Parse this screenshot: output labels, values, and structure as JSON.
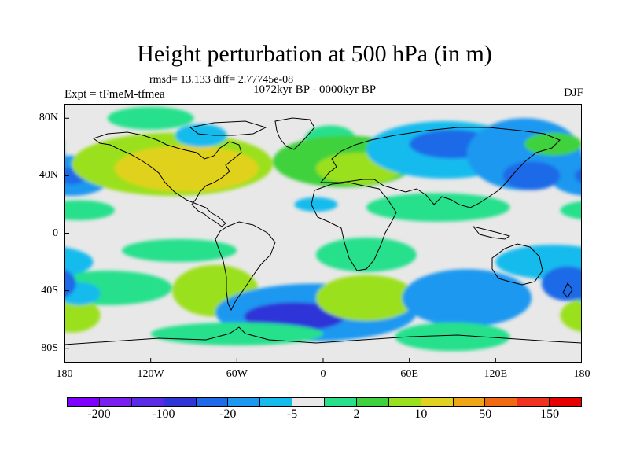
{
  "title": "Height perturbation at 500 hPa (in m)",
  "stats": "rmsd= 13.133 diff= 2.77745e-08",
  "subtitle": "1072kyr BP - 0000kyr BP",
  "left_label": "Expt = tFmeM-tfmea",
  "right_label": "DJF",
  "map": {
    "projection": "cylindrical-equidistant",
    "lon_range": [
      -180,
      180
    ],
    "lat_range": [
      -90,
      90
    ],
    "lat_ticks": [
      {
        "value": 80,
        "label": "80N"
      },
      {
        "value": 40,
        "label": "40N"
      },
      {
        "value": 0,
        "label": "0"
      },
      {
        "value": -40,
        "label": "40S"
      },
      {
        "value": -80,
        "label": "80S"
      }
    ],
    "lon_ticks": [
      {
        "value": -180,
        "label": "180"
      },
      {
        "value": -120,
        "label": "120W"
      },
      {
        "value": -60,
        "label": "60W"
      },
      {
        "value": 0,
        "label": "0"
      },
      {
        "value": 60,
        "label": "60E"
      },
      {
        "value": 120,
        "label": "120E"
      },
      {
        "value": 180,
        "label": "180"
      }
    ],
    "features": [
      {
        "lon": -120,
        "lat": 80,
        "rx": 30,
        "ry": 8,
        "level": 8
      },
      {
        "lon": -175,
        "lat": 40,
        "rx": 28,
        "ry": 14,
        "level": 3
      },
      {
        "lon": -175,
        "lat": 40,
        "rx": 10,
        "ry": 6,
        "level": 2
      },
      {
        "lon": -105,
        "lat": 48,
        "rx": 70,
        "ry": 22,
        "level": 10
      },
      {
        "lon": -95,
        "lat": 45,
        "rx": 50,
        "ry": 16,
        "level": 11
      },
      {
        "lon": -85,
        "lat": 68,
        "rx": 18,
        "ry": 8,
        "level": 4
      },
      {
        "lon": 5,
        "lat": 65,
        "rx": 18,
        "ry": 10,
        "level": 5
      },
      {
        "lon": 15,
        "lat": 50,
        "rx": 50,
        "ry": 18,
        "level": 9
      },
      {
        "lon": 25,
        "lat": 45,
        "rx": 30,
        "ry": 11,
        "level": 10
      },
      {
        "lon": 85,
        "lat": 58,
        "rx": 55,
        "ry": 20,
        "level": 4
      },
      {
        "lon": 90,
        "lat": 62,
        "rx": 30,
        "ry": 10,
        "level": 2
      },
      {
        "lon": 140,
        "lat": 55,
        "rx": 40,
        "ry": 25,
        "level": 3
      },
      {
        "lon": 145,
        "lat": 40,
        "rx": 20,
        "ry": 10,
        "level": 2
      },
      {
        "lon": 160,
        "lat": 62,
        "rx": 20,
        "ry": 8,
        "level": 9
      },
      {
        "lon": 80,
        "lat": 18,
        "rx": 50,
        "ry": 10,
        "level": 8
      },
      {
        "lon": -170,
        "lat": 16,
        "rx": 25,
        "ry": 7,
        "level": 8
      },
      {
        "lon": -5,
        "lat": 20,
        "rx": 15,
        "ry": 5,
        "level": 4
      },
      {
        "lon": -100,
        "lat": -12,
        "rx": 40,
        "ry": 8,
        "level": 5
      },
      {
        "lon": -75,
        "lat": -40,
        "rx": 30,
        "ry": 18,
        "level": 10
      },
      {
        "lon": -150,
        "lat": -38,
        "rx": 45,
        "ry": 12,
        "level": 8
      },
      {
        "lon": -175,
        "lat": -57,
        "rx": 20,
        "ry": 12,
        "level": 10
      },
      {
        "lon": -170,
        "lat": -42,
        "rx": 15,
        "ry": 8,
        "level": 4
      },
      {
        "lon": -5,
        "lat": -55,
        "rx": 70,
        "ry": 20,
        "level": 3
      },
      {
        "lon": -20,
        "lat": -58,
        "rx": 35,
        "ry": 10,
        "level": 1
      },
      {
        "lon": 30,
        "lat": -45,
        "rx": 35,
        "ry": 16,
        "level": 10
      },
      {
        "lon": 30,
        "lat": -15,
        "rx": 35,
        "ry": 12,
        "level": 8
      },
      {
        "lon": 100,
        "lat": -45,
        "rx": 45,
        "ry": 20,
        "level": 3
      },
      {
        "lon": 160,
        "lat": -20,
        "rx": 40,
        "ry": 12,
        "level": 4
      },
      {
        "lon": 170,
        "lat": -35,
        "rx": 18,
        "ry": 12,
        "level": 2
      },
      {
        "lon": 90,
        "lat": -72,
        "rx": 40,
        "ry": 10,
        "level": 8
      },
      {
        "lon": -60,
        "lat": -70,
        "rx": 60,
        "ry": 8,
        "level": 8
      }
    ]
  },
  "colorbar": {
    "colors": [
      "#8000ff",
      "#7b1ef0",
      "#5a2ae6",
      "#2e36d8",
      "#1f6ae8",
      "#1c98f0",
      "#16bbee",
      "#e8e8e8",
      "#28e08c",
      "#3fd23c",
      "#9be01e",
      "#e0d21e",
      "#f0a514",
      "#f06a14",
      "#f0321e",
      "#e60000"
    ],
    "labels": [
      {
        "text": "-200",
        "boundary": 1
      },
      {
        "text": "-100",
        "boundary": 3
      },
      {
        "text": "-20",
        "boundary": 5
      },
      {
        "text": "-5",
        "boundary": 7
      },
      {
        "text": "2",
        "boundary": 9
      },
      {
        "text": "10",
        "boundary": 11
      },
      {
        "text": "50",
        "boundary": 13
      },
      {
        "text": "150",
        "boundary": 15
      }
    ]
  },
  "map_colors": {
    "background": "#e8e8e8",
    "levels": {
      "1": "#2e36d8",
      "2": "#1f6ae8",
      "3": "#1c98f0",
      "4": "#16bbee",
      "5": "#28e08c",
      "8": "#28e08c",
      "9": "#3fd23c",
      "10": "#9be01e",
      "11": "#e0d21e"
    }
  }
}
